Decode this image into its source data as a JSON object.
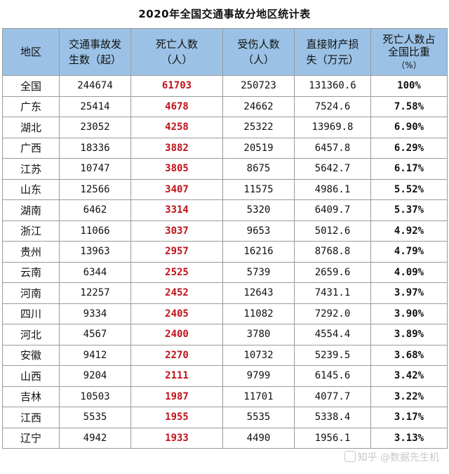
{
  "title": "2020年全国交通事故分地区统计表",
  "headers": {
    "region": "地区",
    "accidents": [
      "交通事故发",
      "生数（起）"
    ],
    "deaths": [
      "死亡人数",
      "（人）"
    ],
    "injuries": [
      "受伤人数",
      "（人）"
    ],
    "loss": [
      "直接财产损",
      "失（万元）"
    ],
    "share": [
      "死亡人数占",
      "全国比重",
      "（%）"
    ]
  },
  "rows": [
    {
      "region": "全国",
      "accidents": "244674",
      "deaths": "61703",
      "injuries": "250723",
      "loss": "131360.6",
      "share": "100%"
    },
    {
      "region": "广东",
      "accidents": "25414",
      "deaths": "4678",
      "injuries": "24662",
      "loss": "7524.6",
      "share": "7.58%"
    },
    {
      "region": "湖北",
      "accidents": "23052",
      "deaths": "4258",
      "injuries": "25322",
      "loss": "13969.8",
      "share": "6.90%"
    },
    {
      "region": "广西",
      "accidents": "18336",
      "deaths": "3882",
      "injuries": "20519",
      "loss": "6457.8",
      "share": "6.29%"
    },
    {
      "region": "江苏",
      "accidents": "10747",
      "deaths": "3805",
      "injuries": "8675",
      "loss": "5642.7",
      "share": "6.17%"
    },
    {
      "region": "山东",
      "accidents": "12566",
      "deaths": "3407",
      "injuries": "11575",
      "loss": "4986.1",
      "share": "5.52%"
    },
    {
      "region": "湖南",
      "accidents": "6462",
      "deaths": "3314",
      "injuries": "5320",
      "loss": "6409.7",
      "share": "5.37%"
    },
    {
      "region": "浙江",
      "accidents": "11066",
      "deaths": "3037",
      "injuries": "9653",
      "loss": "5012.6",
      "share": "4.92%"
    },
    {
      "region": "贵州",
      "accidents": "13963",
      "deaths": "2957",
      "injuries": "16216",
      "loss": "8768.8",
      "share": "4.79%"
    },
    {
      "region": "云南",
      "accidents": "6344",
      "deaths": "2525",
      "injuries": "5739",
      "loss": "2659.6",
      "share": "4.09%"
    },
    {
      "region": "河南",
      "accidents": "12257",
      "deaths": "2452",
      "injuries": "12643",
      "loss": "7431.1",
      "share": "3.97%"
    },
    {
      "region": "四川",
      "accidents": "9334",
      "deaths": "2405",
      "injuries": "11082",
      "loss": "7292.0",
      "share": "3.90%"
    },
    {
      "region": "河北",
      "accidents": "4567",
      "deaths": "2400",
      "injuries": "3780",
      "loss": "4554.4",
      "share": "3.89%"
    },
    {
      "region": "安徽",
      "accidents": "9412",
      "deaths": "2270",
      "injuries": "10732",
      "loss": "5239.5",
      "share": "3.68%"
    },
    {
      "region": "山西",
      "accidents": "9204",
      "deaths": "2111",
      "injuries": "9799",
      "loss": "6145.6",
      "share": "3.42%"
    },
    {
      "region": "吉林",
      "accidents": "10503",
      "deaths": "1987",
      "injuries": "11701",
      "loss": "4077.7",
      "share": "3.22%"
    },
    {
      "region": "江西",
      "accidents": "5535",
      "deaths": "1955",
      "injuries": "5535",
      "loss": "5338.4",
      "share": "3.17%"
    },
    {
      "region": "辽宁",
      "accidents": "4942",
      "deaths": "1933",
      "injuries": "4490",
      "loss": "1956.1",
      "share": "3.13%"
    }
  ],
  "watermark": "知乎 @数据先生机",
  "colors": {
    "header_bg": "#9bc2e6",
    "death_red": "#c0121a",
    "grid": "#9a9a9a"
  }
}
